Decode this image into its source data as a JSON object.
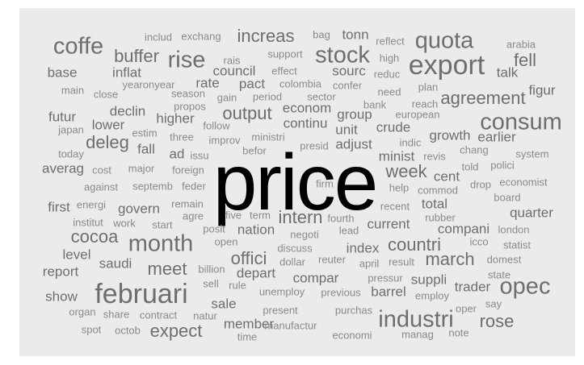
{
  "colors": {
    "background": "#ebebeb",
    "big": "#000000",
    "mid": "#6e6e6e",
    "small": "#8a8a8a"
  },
  "words": [
    {
      "text": "price",
      "tier": 1
    },
    {
      "text": "export",
      "tier": 2
    },
    {
      "text": "februari",
      "tier": 2
    },
    {
      "text": "coffe",
      "tier": 3
    },
    {
      "text": "stock",
      "tier": 3
    },
    {
      "text": "rise",
      "tier": 3
    },
    {
      "text": "quota",
      "tier": 3
    },
    {
      "text": "month",
      "tier": 3
    },
    {
      "text": "opec",
      "tier": 3
    },
    {
      "text": "industri",
      "tier": 3
    },
    {
      "text": "consum",
      "tier": 3
    },
    {
      "text": "increas",
      "tier": 4
    },
    {
      "text": "rose",
      "tier": 4
    },
    {
      "text": "buffer",
      "tier": 4
    },
    {
      "text": "fell",
      "tier": 4
    },
    {
      "text": "output",
      "tier": 4
    },
    {
      "text": "meet",
      "tier": 4
    },
    {
      "text": "expect",
      "tier": 4
    },
    {
      "text": "march",
      "tier": 4
    },
    {
      "text": "offici",
      "tier": 4
    },
    {
      "text": "countri",
      "tier": 4
    },
    {
      "text": "agreement",
      "tier": 4
    },
    {
      "text": "cocoa",
      "tier": 4
    },
    {
      "text": "deleg",
      "tier": 4
    },
    {
      "text": "intern",
      "tier": 4
    },
    {
      "text": "week",
      "tier": 4
    },
    {
      "text": "inflat",
      "tier": 5
    },
    {
      "text": "base",
      "tier": 5
    },
    {
      "text": "rate",
      "tier": 5
    },
    {
      "text": "pact",
      "tier": 5
    },
    {
      "text": "council",
      "tier": 5
    },
    {
      "text": "sourc",
      "tier": 5
    },
    {
      "text": "tonn",
      "tier": 5
    },
    {
      "text": "figur",
      "tier": 5
    },
    {
      "text": "talk",
      "tier": 5
    },
    {
      "text": "declin",
      "tier": 5
    },
    {
      "text": "higher",
      "tier": 5
    },
    {
      "text": "lower",
      "tier": 5
    },
    {
      "text": "futur",
      "tier": 5
    },
    {
      "text": "econom",
      "tier": 5
    },
    {
      "text": "continu",
      "tier": 5
    },
    {
      "text": "group",
      "tier": 5
    },
    {
      "text": "crude",
      "tier": 5
    },
    {
      "text": "growth",
      "tier": 5
    },
    {
      "text": "earlier",
      "tier": 5
    },
    {
      "text": "fall",
      "tier": 5
    },
    {
      "text": "adjust",
      "tier": 5
    },
    {
      "text": "unit",
      "tier": 5
    },
    {
      "text": "minist",
      "tier": 5
    },
    {
      "text": "averag",
      "tier": 5
    },
    {
      "text": "ad",
      "tier": 5
    },
    {
      "text": "cent",
      "tier": 5
    },
    {
      "text": "govern",
      "tier": 5
    },
    {
      "text": "total",
      "tier": 5
    },
    {
      "text": "quarter",
      "tier": 5
    },
    {
      "text": "nation",
      "tier": 5
    },
    {
      "text": "current",
      "tier": 5
    },
    {
      "text": "level",
      "tier": 5
    },
    {
      "text": "index",
      "tier": 5
    },
    {
      "text": "saudi",
      "tier": 5
    },
    {
      "text": "report",
      "tier": 5
    },
    {
      "text": "depart",
      "tier": 5
    },
    {
      "text": "compar",
      "tier": 5
    },
    {
      "text": "suppli",
      "tier": 5
    },
    {
      "text": "trader",
      "tier": 5
    },
    {
      "text": "barrel",
      "tier": 5
    },
    {
      "text": "show",
      "tier": 5
    },
    {
      "text": "sale",
      "tier": 5
    },
    {
      "text": "member",
      "tier": 5
    },
    {
      "text": "compani",
      "tier": 5
    },
    {
      "text": "first",
      "tier": 5
    },
    {
      "text": "season",
      "tier": 6
    },
    {
      "text": "propos",
      "tier": 6
    },
    {
      "text": "gain",
      "tier": 6
    },
    {
      "text": "period",
      "tier": 6
    },
    {
      "text": "sector",
      "tier": 6
    },
    {
      "text": "effect",
      "tier": 6
    },
    {
      "text": "colombia",
      "tier": 6
    },
    {
      "text": "confer",
      "tier": 6
    },
    {
      "text": "need",
      "tier": 6
    },
    {
      "text": "plan",
      "tier": 6
    },
    {
      "text": "bag",
      "tier": 6
    },
    {
      "text": "includ",
      "tier": 6
    },
    {
      "text": "exchang",
      "tier": 6
    },
    {
      "text": "support",
      "tier": 6
    },
    {
      "text": "rais",
      "tier": 6
    },
    {
      "text": "high",
      "tier": 6
    },
    {
      "text": "reduc",
      "tier": 6
    },
    {
      "text": "reflect",
      "tier": 6
    },
    {
      "text": "arabia",
      "tier": 6
    },
    {
      "text": "main",
      "tier": 6
    },
    {
      "text": "close",
      "tier": 6
    },
    {
      "text": "yearonyear",
      "tier": 6
    },
    {
      "text": "reach",
      "tier": 6
    },
    {
      "text": "european",
      "tier": 6
    },
    {
      "text": "bank",
      "tier": 6
    },
    {
      "text": "japan",
      "tier": 6
    },
    {
      "text": "estim",
      "tier": 6
    },
    {
      "text": "follow",
      "tier": 6
    },
    {
      "text": "three",
      "tier": 6
    },
    {
      "text": "improv",
      "tier": 6
    },
    {
      "text": "ministri",
      "tier": 6
    },
    {
      "text": "presid",
      "tier": 6
    },
    {
      "text": "indic",
      "tier": 6
    },
    {
      "text": "chang",
      "tier": 6
    },
    {
      "text": "system",
      "tier": 6
    },
    {
      "text": "today",
      "tier": 6
    },
    {
      "text": "issu",
      "tier": 6
    },
    {
      "text": "befor",
      "tier": 6
    },
    {
      "text": "revis",
      "tier": 6
    },
    {
      "text": "told",
      "tier": 6
    },
    {
      "text": "polici",
      "tier": 6
    },
    {
      "text": "cost",
      "tier": 6
    },
    {
      "text": "major",
      "tier": 6
    },
    {
      "text": "foreign",
      "tier": 6
    },
    {
      "text": "economist",
      "tier": 6
    },
    {
      "text": "against",
      "tier": 6
    },
    {
      "text": "septemb",
      "tier": 6
    },
    {
      "text": "feder",
      "tier": 6
    },
    {
      "text": "firm",
      "tier": 6
    },
    {
      "text": "help",
      "tier": 6
    },
    {
      "text": "commod",
      "tier": 6
    },
    {
      "text": "drop",
      "tier": 6
    },
    {
      "text": "board",
      "tier": 6
    },
    {
      "text": "energi",
      "tier": 6
    },
    {
      "text": "remain",
      "tier": 6
    },
    {
      "text": "recent",
      "tier": 6
    },
    {
      "text": "agre",
      "tier": 6
    },
    {
      "text": "five",
      "tier": 6
    },
    {
      "text": "term",
      "tier": 6
    },
    {
      "text": "fourth",
      "tier": 6
    },
    {
      "text": "rubber",
      "tier": 6
    },
    {
      "text": "institut",
      "tier": 6
    },
    {
      "text": "work",
      "tier": 6
    },
    {
      "text": "start",
      "tier": 6
    },
    {
      "text": "posit",
      "tier": 6
    },
    {
      "text": "negoti",
      "tier": 6
    },
    {
      "text": "lead",
      "tier": 6
    },
    {
      "text": "london",
      "tier": 6
    },
    {
      "text": "open",
      "tier": 6
    },
    {
      "text": "icco",
      "tier": 6
    },
    {
      "text": "statist",
      "tier": 6
    },
    {
      "text": "discuss",
      "tier": 6
    },
    {
      "text": "dollar",
      "tier": 6
    },
    {
      "text": "reuter",
      "tier": 6
    },
    {
      "text": "april",
      "tier": 6
    },
    {
      "text": "result",
      "tier": 6
    },
    {
      "text": "domest",
      "tier": 6
    },
    {
      "text": "billion",
      "tier": 6
    },
    {
      "text": "state",
      "tier": 6
    },
    {
      "text": "pressur",
      "tier": 6
    },
    {
      "text": "sell",
      "tier": 6
    },
    {
      "text": "rule",
      "tier": 6
    },
    {
      "text": "unemploy",
      "tier": 6
    },
    {
      "text": "previous",
      "tier": 6
    },
    {
      "text": "employ",
      "tier": 6
    },
    {
      "text": "say",
      "tier": 6
    },
    {
      "text": "organ",
      "tier": 6
    },
    {
      "text": "share",
      "tier": 6
    },
    {
      "text": "contract",
      "tier": 6
    },
    {
      "text": "natur",
      "tier": 6
    },
    {
      "text": "present",
      "tier": 6
    },
    {
      "text": "purchas",
      "tier": 6
    },
    {
      "text": "oper",
      "tier": 6
    },
    {
      "text": "spot",
      "tier": 6
    },
    {
      "text": "octob",
      "tier": 6
    },
    {
      "text": "manufactur",
      "tier": 6
    },
    {
      "text": "economi",
      "tier": 6
    },
    {
      "text": "manag",
      "tier": 6
    },
    {
      "text": "note",
      "tier": 6
    },
    {
      "text": "time",
      "tier": 6
    }
  ]
}
